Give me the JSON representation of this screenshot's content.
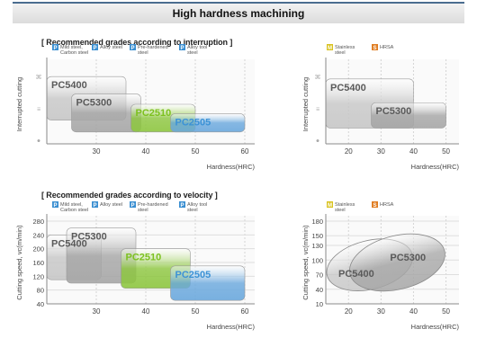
{
  "page": {
    "title": "High hardness machining",
    "section1": "[ Recommended grades according to interruption ]",
    "section2": "[ Recommended grades according to velocity ]"
  },
  "colors": {
    "P": "#3b8fd1",
    "M": "#d9c21e",
    "S": "#e07d22",
    "PC5400": "#c7c7c7",
    "PC5300": "#a6a6a6",
    "PC2510": "#8dc63f",
    "PC2505": "#6aa8dd"
  },
  "chart_data": [
    {
      "type": "range-area",
      "id": "interruption-p",
      "ylabel": "Interrupted cutting",
      "xlabel": "Hardness(HRC)",
      "xlim": [
        20,
        62
      ],
      "xticks": [
        30,
        40,
        50,
        60
      ],
      "yticks": [
        "●",
        "≡",
        "⌘"
      ],
      "legend": [
        {
          "letter": "P",
          "text": "Mild steel, Carbon steel"
        },
        {
          "letter": "P",
          "text": "Alloy steel"
        },
        {
          "letter": "P",
          "text": "Pre-hardened steel"
        },
        {
          "letter": "P",
          "text": "Alloy tool steel"
        }
      ],
      "regions": [
        {
          "grade": "PC5400",
          "x": [
            20,
            36
          ],
          "y": [
            0.3,
            0.85
          ]
        },
        {
          "grade": "PC5300",
          "x": [
            25,
            39
          ],
          "y": [
            0.15,
            0.63
          ]
        },
        {
          "grade": "PC2510",
          "x": [
            37,
            50
          ],
          "y": [
            0.15,
            0.5
          ]
        },
        {
          "grade": "PC2505",
          "x": [
            45,
            60
          ],
          "y": [
            0.15,
            0.38
          ]
        }
      ]
    },
    {
      "type": "range-area",
      "id": "interruption-ms",
      "ylabel": "Interrupted cutting",
      "xlabel": "Hardness(HRC)",
      "xlim": [
        13,
        54
      ],
      "xticks": [
        20,
        30,
        40,
        50
      ],
      "yticks": [
        "●",
        "≡",
        "⌘"
      ],
      "legend": [
        {
          "letter": "M",
          "text": "Stainless steel"
        },
        {
          "letter": "S",
          "text": "HRSA"
        }
      ],
      "regions": [
        {
          "grade": "PC5400",
          "x": [
            13,
            40
          ],
          "y": [
            0.2,
            0.82
          ]
        },
        {
          "grade": "PC5300",
          "x": [
            27,
            50
          ],
          "y": [
            0.2,
            0.52
          ]
        }
      ]
    },
    {
      "type": "range-area",
      "id": "velocity-p",
      "ylabel": "Cutting speed, vc(m/min)",
      "xlabel": "Hardness(HRC)",
      "xlim": [
        20,
        62
      ],
      "ylim": [
        40,
        280
      ],
      "xticks": [
        30,
        40,
        50,
        60
      ],
      "yticks": [
        280,
        240,
        200,
        160,
        120,
        80,
        40
      ],
      "legend": [
        {
          "letter": "P",
          "text": "Mild steel, Carbon steel"
        },
        {
          "letter": "P",
          "text": "Alloy steel"
        },
        {
          "letter": "P",
          "text": "Pre-hardened steel"
        },
        {
          "letter": "P",
          "text": "Alloy tool steel"
        }
      ],
      "regions": [
        {
          "grade": "PC5400",
          "x": [
            20,
            31
          ],
          "y": [
            110,
            240
          ]
        },
        {
          "grade": "PC5300",
          "x": [
            24,
            38
          ],
          "y": [
            100,
            260
          ]
        },
        {
          "grade": "PC2510",
          "x": [
            35,
            49
          ],
          "y": [
            85,
            200
          ]
        },
        {
          "grade": "PC2505",
          "x": [
            45,
            60
          ],
          "y": [
            50,
            150
          ]
        }
      ]
    },
    {
      "type": "range-area",
      "id": "velocity-ms",
      "ylabel": "Cutting speed, vc(m/min)",
      "xlabel": "Hardness(HRC)",
      "xlim": [
        13,
        54
      ],
      "ylim": [
        10,
        180
      ],
      "xticks": [
        20,
        30,
        40,
        50
      ],
      "yticks": [
        180,
        150,
        130,
        100,
        70,
        40,
        10
      ],
      "legend": [
        {
          "letter": "M",
          "text": "Stainless steel"
        },
        {
          "letter": "S",
          "text": "HRSA"
        }
      ],
      "regions": [
        {
          "grade": "PC5400",
          "x": [
            13,
            40
          ],
          "y": [
            40,
            140
          ],
          "shape": "ellipse"
        },
        {
          "grade": "PC5300",
          "x": [
            20,
            50
          ],
          "y": [
            40,
            150
          ],
          "shape": "ellipse"
        }
      ]
    }
  ]
}
